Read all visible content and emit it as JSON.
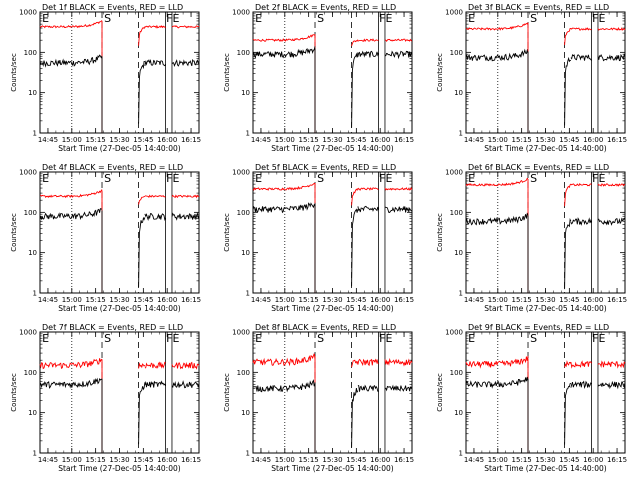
{
  "chart_data": [
    {
      "type": "line",
      "title": "Det 1f BLACK = Events, RED = LLD",
      "xlabel": "Start Time (27-Dec-05 14:40:00)",
      "ylabel": "Counts/sec",
      "yscale": "log",
      "ylim": [
        1,
        1000
      ],
      "xticks": [
        "14:45",
        "15:00",
        "15:15",
        "15:30",
        "15:45",
        "16:00",
        "16:15"
      ],
      "yticks": [
        "1",
        "10",
        "100",
        "1000"
      ],
      "markers": [
        {
          "label": "E",
          "t": "14:41"
        },
        {
          "label": "S",
          "t": "15:20"
        },
        {
          "label": "F",
          "t": "15:59"
        },
        {
          "label": "E",
          "t": "16:03"
        }
      ],
      "series": [
        {
          "color": "#ff0000",
          "level": 430,
          "gap_level": 150
        },
        {
          "color": "#000000",
          "level": 55,
          "gap_level": 1.5
        }
      ]
    },
    {
      "type": "line",
      "title": "Det 2f BLACK = Events, RED = LLD",
      "xlabel": "Start Time (27-Dec-05 14:40:00)",
      "ylabel": "Counts/sec",
      "yscale": "log",
      "ylim": [
        1,
        1000
      ],
      "xticks": [
        "14:45",
        "15:00",
        "15:15",
        "15:30",
        "15:45",
        "16:00",
        "16:15"
      ],
      "yticks": [
        "1",
        "10",
        "100",
        "1000"
      ],
      "markers": [
        {
          "label": "E",
          "t": "14:41"
        },
        {
          "label": "S",
          "t": "15:20"
        },
        {
          "label": "F",
          "t": "15:59"
        },
        {
          "label": "E",
          "t": "16:03"
        }
      ],
      "series": [
        {
          "color": "#ff0000",
          "level": 200,
          "gap_level": 150
        },
        {
          "color": "#000000",
          "level": 90,
          "gap_level": 1.5
        }
      ]
    },
    {
      "type": "line",
      "title": "Det 3f BLACK = Events, RED = LLD",
      "xlabel": "Start Time (27-Dec-05 14:40:00)",
      "ylabel": "Counts/sec",
      "yscale": "log",
      "ylim": [
        1,
        1000
      ],
      "xticks": [
        "14:45",
        "15:00",
        "15:15",
        "15:30",
        "15:45",
        "16:00",
        "16:15"
      ],
      "yticks": [
        "1",
        "10",
        "100",
        "1000"
      ],
      "markers": [
        {
          "label": "E",
          "t": "14:41"
        },
        {
          "label": "S",
          "t": "15:20"
        },
        {
          "label": "F",
          "t": "15:59"
        },
        {
          "label": "E",
          "t": "16:03"
        }
      ],
      "series": [
        {
          "color": "#ff0000",
          "level": 380,
          "gap_level": 150
        },
        {
          "color": "#000000",
          "level": 75,
          "gap_level": 1.5
        }
      ]
    },
    {
      "type": "line",
      "title": "Det 4f BLACK = Events, RED = LLD",
      "xlabel": "Start Time (27-Dec-05 14:40:00)",
      "ylabel": "Counts/sec",
      "yscale": "log",
      "ylim": [
        1,
        1000
      ],
      "xticks": [
        "14:45",
        "15:00",
        "15:15",
        "15:30",
        "15:45",
        "16:00",
        "16:15"
      ],
      "yticks": [
        "1",
        "10",
        "100",
        "1000"
      ],
      "markers": [
        {
          "label": "E",
          "t": "14:41"
        },
        {
          "label": "S",
          "t": "15:20"
        },
        {
          "label": "F",
          "t": "15:59"
        },
        {
          "label": "E",
          "t": "16:03"
        }
      ],
      "series": [
        {
          "color": "#ff0000",
          "level": 250,
          "gap_level": 150
        },
        {
          "color": "#000000",
          "level": 80,
          "gap_level": 1.5
        }
      ]
    },
    {
      "type": "line",
      "title": "Det 5f BLACK = Events, RED = LLD",
      "xlabel": "Start Time (27-Dec-05 14:40:00)",
      "ylabel": "Counts/sec",
      "yscale": "log",
      "ylim": [
        1,
        1000
      ],
      "xticks": [
        "14:45",
        "15:00",
        "15:15",
        "15:30",
        "15:45",
        "16:00",
        "16:15"
      ],
      "yticks": [
        "1",
        "10",
        "100",
        "1000"
      ],
      "markers": [
        {
          "label": "E",
          "t": "14:41"
        },
        {
          "label": "S",
          "t": "15:20"
        },
        {
          "label": "F",
          "t": "15:59"
        },
        {
          "label": "E",
          "t": "16:03"
        }
      ],
      "series": [
        {
          "color": "#ff0000",
          "level": 380,
          "gap_level": 150
        },
        {
          "color": "#000000",
          "level": 120,
          "gap_level": 1.5
        }
      ]
    },
    {
      "type": "line",
      "title": "Det 6f BLACK = Events, RED = LLD",
      "xlabel": "Start Time (27-Dec-05 14:40:00)",
      "ylabel": "Counts/sec",
      "yscale": "log",
      "ylim": [
        1,
        1000
      ],
      "xticks": [
        "14:45",
        "15:00",
        "15:15",
        "15:30",
        "15:45",
        "16:00",
        "16:15"
      ],
      "yticks": [
        "1",
        "10",
        "100",
        "1000"
      ],
      "markers": [
        {
          "label": "E",
          "t": "14:41"
        },
        {
          "label": "S",
          "t": "15:20"
        },
        {
          "label": "F",
          "t": "15:59"
        },
        {
          "label": "E",
          "t": "16:03"
        }
      ],
      "series": [
        {
          "color": "#ff0000",
          "level": 480,
          "gap_level": 150
        },
        {
          "color": "#000000",
          "level": 60,
          "gap_level": 1.5
        }
      ]
    },
    {
      "type": "line",
      "title": "Det 7f BLACK = Events, RED = LLD",
      "xlabel": "Start Time (27-Dec-05 14:40:00)",
      "ylabel": "Counts/sec",
      "yscale": "log",
      "ylim": [
        1,
        1000
      ],
      "xticks": [
        "14:45",
        "15:00",
        "15:15",
        "15:30",
        "15:45",
        "16:00",
        "16:15"
      ],
      "yticks": [
        "1",
        "10",
        "100",
        "1000"
      ],
      "markers": [
        {
          "label": "E",
          "t": "14:41"
        },
        {
          "label": "S",
          "t": "15:20"
        },
        {
          "label": "F",
          "t": "15:59"
        },
        {
          "label": "E",
          "t": "16:03"
        }
      ],
      "series": [
        {
          "color": "#ff0000",
          "level": 150,
          "gap_level": 150
        },
        {
          "color": "#000000",
          "level": 50,
          "gap_level": 1.5
        }
      ]
    },
    {
      "type": "line",
      "title": "Det 8f BLACK = Events, RED = LLD",
      "xlabel": "Start Time (27-Dec-05 14:40:00)",
      "ylabel": "Counts/sec",
      "yscale": "log",
      "ylim": [
        1,
        1000
      ],
      "xticks": [
        "14:45",
        "15:00",
        "15:15",
        "15:30",
        "15:45",
        "16:00",
        "16:15"
      ],
      "yticks": [
        "1",
        "10",
        "100",
        "1000"
      ],
      "markers": [
        {
          "label": "E",
          "t": "14:41"
        },
        {
          "label": "S",
          "t": "15:20"
        },
        {
          "label": "F",
          "t": "15:59"
        },
        {
          "label": "E",
          "t": "16:03"
        }
      ],
      "series": [
        {
          "color": "#ff0000",
          "level": 180,
          "gap_level": 150
        },
        {
          "color": "#000000",
          "level": 40,
          "gap_level": 1.5
        }
      ]
    },
    {
      "type": "line",
      "title": "Det 9f BLACK = Events, RED = LLD",
      "xlabel": "Start Time (27-Dec-05 14:40:00)",
      "ylabel": "Counts/sec",
      "yscale": "log",
      "ylim": [
        1,
        1000
      ],
      "xticks": [
        "14:45",
        "15:00",
        "15:15",
        "15:30",
        "15:45",
        "16:00",
        "16:15"
      ],
      "yticks": [
        "1",
        "10",
        "100",
        "1000"
      ],
      "markers": [
        {
          "label": "E",
          "t": "14:41"
        },
        {
          "label": "S",
          "t": "15:20"
        },
        {
          "label": "F",
          "t": "15:59"
        },
        {
          "label": "E",
          "t": "16:03"
        }
      ],
      "series": [
        {
          "color": "#ff0000",
          "level": 160,
          "gap_level": 150
        },
        {
          "color": "#000000",
          "level": 50,
          "gap_level": 1.5
        }
      ]
    }
  ]
}
